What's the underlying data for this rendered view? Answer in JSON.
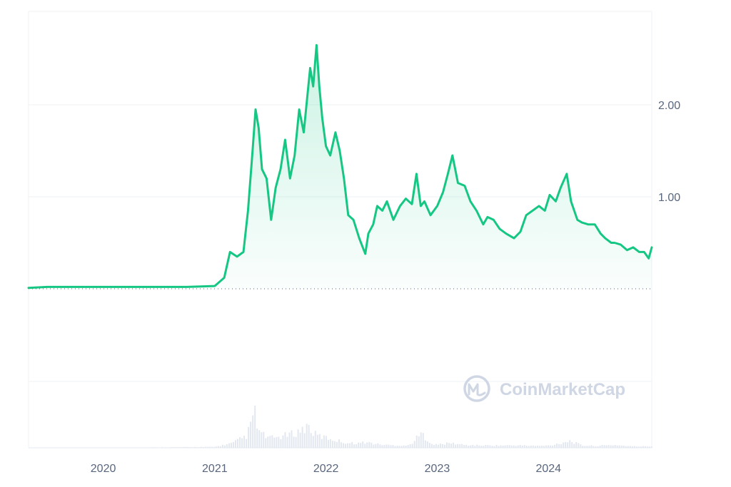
{
  "watermark": {
    "text": "CoinMarketCap"
  },
  "colors": {
    "line": "#16c784",
    "grid": "#eff2f5",
    "axis_text": "#58667e",
    "volume": "#e3e8f0",
    "watermark": "#cfd6e4"
  },
  "chart_data": {
    "type": "area",
    "title": "",
    "xlabel": "",
    "ylabel": "",
    "x_ticks": [
      "2020",
      "2021",
      "2022",
      "2023",
      "2024"
    ],
    "y_ticks": [
      "1.00",
      "2.00"
    ],
    "ylim": [
      0,
      3.0
    ],
    "xlim": [
      "2019-05-01",
      "2024-12-05"
    ],
    "grid": true,
    "baseline_dotted": true,
    "series": [
      {
        "x": [
          "2019-05-01",
          "2019-07-01",
          "2019-10-01",
          "2020-01-01",
          "2020-04-01",
          "2020-07-01",
          "2020-10-01",
          "2021-01-01",
          "2021-02-01",
          "2021-02-20",
          "2021-03-15",
          "2021-04-05",
          "2021-04-20",
          "2021-05-05",
          "2021-05-15",
          "2021-05-25",
          "2021-06-05",
          "2021-06-20",
          "2021-07-05",
          "2021-07-20",
          "2021-08-05",
          "2021-08-20",
          "2021-09-05",
          "2021-09-20",
          "2021-10-05",
          "2021-10-20",
          "2021-11-01",
          "2021-11-10",
          "2021-11-20",
          "2021-12-01",
          "2021-12-10",
          "2021-12-20",
          "2022-01-01",
          "2022-01-15",
          "2022-02-01",
          "2022-02-15",
          "2022-03-01",
          "2022-03-15",
          "2022-04-01",
          "2022-04-20",
          "2022-05-10",
          "2022-05-20",
          "2022-06-05",
          "2022-06-18",
          "2022-07-05",
          "2022-07-20",
          "2022-08-10",
          "2022-09-01",
          "2022-09-20",
          "2022-10-10",
          "2022-10-25",
          "2022-11-08",
          "2022-11-20",
          "2022-12-10",
          "2023-01-01",
          "2023-01-20",
          "2023-02-05",
          "2023-02-20",
          "2023-03-10",
          "2023-04-01",
          "2023-04-20",
          "2023-05-10",
          "2023-06-01",
          "2023-06-15",
          "2023-07-05",
          "2023-07-25",
          "2023-08-15",
          "2023-09-10",
          "2023-10-01",
          "2023-10-20",
          "2023-11-10",
          "2023-12-01",
          "2023-12-20",
          "2024-01-05",
          "2024-01-25",
          "2024-02-10",
          "2024-03-01",
          "2024-03-15",
          "2024-04-05",
          "2024-04-20",
          "2024-05-10",
          "2024-06-01",
          "2024-06-20",
          "2024-07-05",
          "2024-07-25",
          "2024-08-05",
          "2024-08-25",
          "2024-09-15",
          "2024-10-05",
          "2024-10-25",
          "2024-11-10",
          "2024-11-25",
          "2024-12-05"
        ],
        "y": [
          0.01,
          0.02,
          0.02,
          0.02,
          0.02,
          0.02,
          0.02,
          0.03,
          0.12,
          0.4,
          0.35,
          0.4,
          0.85,
          1.5,
          1.95,
          1.75,
          1.3,
          1.2,
          0.75,
          1.1,
          1.3,
          1.62,
          1.2,
          1.45,
          1.95,
          1.7,
          2.1,
          2.4,
          2.2,
          2.65,
          2.2,
          1.85,
          1.55,
          1.45,
          1.7,
          1.5,
          1.2,
          0.8,
          0.75,
          0.55,
          0.38,
          0.6,
          0.7,
          0.9,
          0.85,
          0.95,
          0.75,
          0.9,
          0.98,
          0.92,
          1.25,
          0.9,
          0.95,
          0.8,
          0.9,
          1.05,
          1.25,
          1.45,
          1.15,
          1.12,
          0.95,
          0.85,
          0.7,
          0.78,
          0.75,
          0.65,
          0.6,
          0.55,
          0.62,
          0.8,
          0.85,
          0.9,
          0.85,
          1.02,
          0.95,
          1.1,
          1.25,
          0.95,
          0.75,
          0.72,
          0.7,
          0.7,
          0.6,
          0.55,
          0.5,
          0.5,
          0.48,
          0.42,
          0.45,
          0.4,
          0.4,
          0.33,
          0.45
        ]
      }
    ],
    "volume": {
      "x": [
        "2019-05-01",
        "2020-01-01",
        "2021-01-01",
        "2021-03-01",
        "2021-04-15",
        "2021-05-01",
        "2021-05-10",
        "2021-05-20",
        "2021-06-01",
        "2021-07-01",
        "2021-08-15",
        "2021-09-15",
        "2021-10-15",
        "2021-11-05",
        "2021-11-20",
        "2021-12-10",
        "2022-01-10",
        "2022-02-10",
        "2022-03-15",
        "2022-04-20",
        "2022-05-12",
        "2022-06-15",
        "2022-07-20",
        "2022-08-20",
        "2022-10-01",
        "2022-11-10",
        "2022-12-20",
        "2023-02-15",
        "2023-04-01",
        "2023-06-01",
        "2023-08-01",
        "2023-10-01",
        "2023-12-01",
        "2024-01-10",
        "2024-03-10",
        "2024-04-20",
        "2024-06-01",
        "2024-08-05",
        "2024-10-01",
        "2024-12-05"
      ],
      "y": [
        0,
        0,
        0.02,
        0.1,
        0.25,
        0.5,
        0.85,
        0.45,
        0.3,
        0.2,
        0.25,
        0.3,
        0.38,
        0.48,
        0.3,
        0.25,
        0.2,
        0.15,
        0.1,
        0.1,
        0.12,
        0.08,
        0.06,
        0.05,
        0.05,
        0.3,
        0.06,
        0.1,
        0.06,
        0.05,
        0.05,
        0.05,
        0.04,
        0.05,
        0.15,
        0.05,
        0.04,
        0.06,
        0.03,
        0.03
      ]
    }
  }
}
